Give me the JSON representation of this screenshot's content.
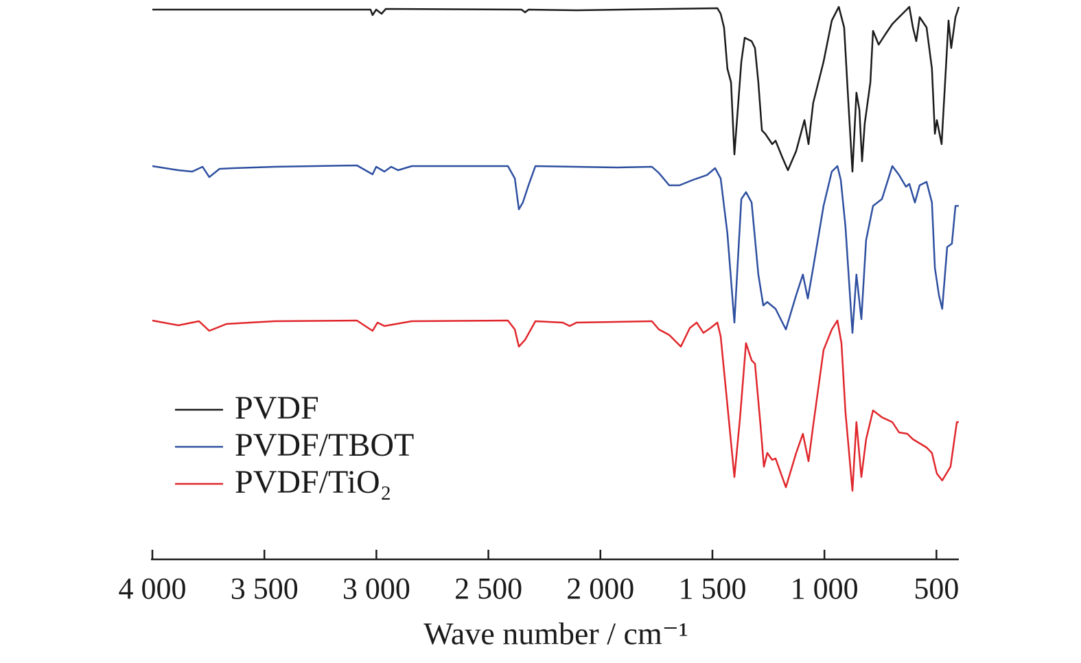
{
  "chart_data": {
    "type": "line",
    "x_label": "Wave number / cm⁻¹",
    "xlim": [
      4000,
      400
    ],
    "ylim": [
      0,
      800
    ],
    "xticks": [
      {
        "value": 4000,
        "label": "4 000"
      },
      {
        "value": 3500,
        "label": "3 500"
      },
      {
        "value": 3000,
        "label": "3 000"
      },
      {
        "value": 2500,
        "label": "2 500"
      },
      {
        "value": 2000,
        "label": "2 000"
      },
      {
        "value": 1500,
        "label": "1 500"
      },
      {
        "value": 1000,
        "label": "1 000"
      },
      500
    ],
    "legend": "lower-left",
    "series": [
      {
        "name": "PVDF",
        "color": "#1a1a1a",
        "x": [
          4000,
          3026,
          3017,
          3001,
          2977,
          2958,
          2352,
          2336,
          2321,
          2107,
          1478,
          1463,
          1448,
          1433,
          1417,
          1402,
          1387,
          1371,
          1356,
          1325,
          1310,
          1295,
          1279,
          1264,
          1233,
          1218,
          1187,
          1163,
          1126,
          1089,
          1071,
          1050,
          1004,
          967,
          936,
          912,
          893,
          875,
          857,
          844,
          832,
          820,
          795,
          783,
          758,
          728,
          697,
          667,
          636,
          621,
          605,
          590,
          575,
          544,
          520,
          507,
          498,
          477,
          458,
          446,
          434,
          415,
          400
        ],
        "values": [
          796,
          796,
          788,
          796,
          790,
          797,
          796,
          792,
          796,
          795,
          798,
          790,
          770,
          710,
          690,
          585,
          650,
          720,
          755,
          750,
          740,
          690,
          620,
          615,
          600,
          605,
          580,
          562,
          590,
          635,
          600,
          660,
          720,
          780,
          800,
          770,
          660,
          560,
          675,
          650,
          575,
          630,
          690,
          765,
          745,
          760,
          775,
          785,
          795,
          800,
          770,
          750,
          785,
          770,
          710,
          615,
          635,
          600,
          710,
          780,
          740,
          785,
          800
        ]
      },
      {
        "name": "PVDF/TBOT",
        "color": "#2e4fa0",
        "x": [
          4000,
          3884,
          3822,
          3776,
          3746,
          3700,
          3638,
          3455,
          3087,
          3017,
          3001,
          2964,
          2934,
          2903,
          2842,
          2413,
          2382,
          2364,
          2346,
          2321,
          2290,
          1923,
          1770,
          1739,
          1693,
          1647,
          1586,
          1524,
          1488,
          1463,
          1433,
          1402,
          1371,
          1350,
          1325,
          1295,
          1273,
          1255,
          1218,
          1172,
          1126,
          1096,
          1074,
          1050,
          1004,
          967,
          942,
          927,
          906,
          875,
          857,
          835,
          814,
          783,
          743,
          697,
          667,
          636,
          621,
          596,
          575,
          544,
          520,
          507,
          489,
          474,
          452,
          431,
          415,
          400
        ],
        "values": [
          568,
          562,
          560,
          567,
          552,
          564,
          565,
          567,
          569,
          556,
          567,
          560,
          567,
          562,
          568,
          568,
          550,
          505,
          515,
          540,
          568,
          566,
          567,
          558,
          540,
          540,
          548,
          555,
          565,
          550,
          470,
          340,
          520,
          530,
          515,
          410,
          365,
          370,
          360,
          330,
          380,
          410,
          375,
          420,
          510,
          560,
          568,
          548,
          480,
          325,
          410,
          345,
          460,
          510,
          520,
          568,
          555,
          538,
          542,
          515,
          540,
          545,
          515,
          420,
          380,
          360,
          450,
          455,
          510,
          510
        ]
      },
      {
        "name": "PVDF/TiO₂",
        "color": "#e0262b",
        "x": [
          4000,
          3884,
          3792,
          3746,
          3669,
          3455,
          3087,
          3017,
          2995,
          2964,
          2842,
          2413,
          2382,
          2364,
          2336,
          2290,
          2168,
          2137,
          2107,
          1770,
          1739,
          1693,
          1641,
          1601,
          1570,
          1540,
          1509,
          1478,
          1463,
          1433,
          1402,
          1377,
          1350,
          1325,
          1310,
          1285,
          1270,
          1255,
          1233,
          1218,
          1172,
          1126,
          1096,
          1071,
          1050,
          1004,
          967,
          942,
          924,
          906,
          875,
          857,
          835,
          814,
          783,
          743,
          697,
          667,
          630,
          605,
          544,
          520,
          498,
          474,
          437,
          409,
          400
        ],
        "values": [
          343,
          336,
          342,
          328,
          338,
          342,
          343,
          328,
          340,
          335,
          342,
          343,
          330,
          305,
          315,
          342,
          340,
          335,
          340,
          342,
          330,
          322,
          305,
          332,
          340,
          325,
          332,
          340,
          320,
          220,
          115,
          200,
          310,
          285,
          280,
          190,
          130,
          150,
          140,
          142,
          100,
          150,
          178,
          138,
          190,
          300,
          330,
          343,
          310,
          210,
          95,
          195,
          115,
          170,
          212,
          202,
          195,
          180,
          178,
          170,
          158,
          150,
          120,
          110,
          130,
          195,
          195
        ]
      }
    ]
  }
}
